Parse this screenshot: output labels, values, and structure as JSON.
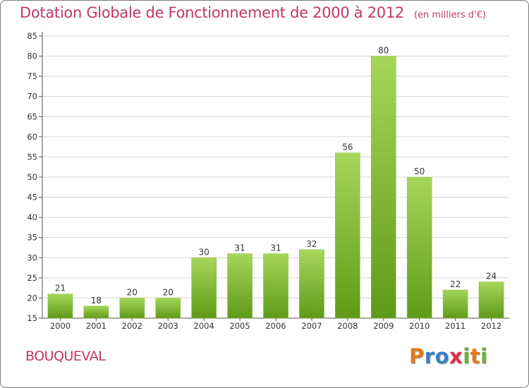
{
  "title": {
    "main": "Dotation Globale de Fonctionnement de 2000 à 2012",
    "unit": "(en milliers d'€)"
  },
  "commune": "BOUQUEVAL",
  "logo": {
    "text": "Proxiti",
    "letter_colors": [
      "#e07a1a",
      "#3a7fc4",
      "#3a7fc4",
      "#d9304a",
      "#6ab02c",
      "#e07a1a",
      "#6ab02c"
    ]
  },
  "colors": {
    "bar_top": "#a6d65a",
    "bar_bottom": "#5f9a18",
    "grid": "#d6d6d6",
    "title": "#c0386b"
  },
  "chart_data": {
    "type": "bar",
    "title": "Dotation Globale de Fonctionnement de 2000 à 2012",
    "subtitle": "(en milliers d'€)",
    "xlabel": "",
    "ylabel": "",
    "categories": [
      "2000",
      "2001",
      "2002",
      "2003",
      "2004",
      "2005",
      "2006",
      "2007",
      "2008",
      "2009",
      "2010",
      "2011",
      "2012"
    ],
    "values": [
      21,
      18,
      20,
      20,
      30,
      31,
      31,
      32,
      56,
      80,
      50,
      22,
      24
    ],
    "ylim": [
      15,
      85
    ],
    "yticks": [
      15,
      20,
      25,
      30,
      35,
      40,
      45,
      50,
      55,
      60,
      65,
      70,
      75,
      80,
      85
    ],
    "grid": true,
    "legend": "none"
  }
}
